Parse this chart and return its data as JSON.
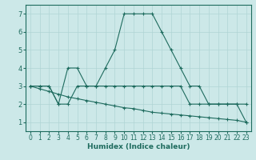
{
  "xlabel": "Humidex (Indice chaleur)",
  "background_color": "#cce8e8",
  "grid_color": "#b0d4d4",
  "line_color": "#1e6b5e",
  "xlim": [
    -0.5,
    23.5
  ],
  "ylim": [
    0.5,
    7.5
  ],
  "xticks": [
    0,
    1,
    2,
    3,
    4,
    5,
    6,
    7,
    8,
    9,
    10,
    11,
    12,
    13,
    14,
    15,
    16,
    17,
    18,
    19,
    20,
    21,
    22,
    23
  ],
  "yticks": [
    1,
    2,
    3,
    4,
    5,
    6,
    7
  ],
  "line1_x": [
    0,
    1,
    2,
    3,
    4,
    5,
    6,
    7,
    8,
    9,
    10,
    11,
    12,
    13,
    14,
    15,
    16,
    17,
    18,
    19,
    20,
    21,
    22,
    23
  ],
  "line1_y": [
    3,
    3,
    3,
    2,
    2,
    3,
    3,
    3,
    3,
    3,
    3,
    3,
    3,
    3,
    3,
    3,
    3,
    2,
    2,
    2,
    2,
    2,
    2,
    2
  ],
  "line2_x": [
    0,
    1,
    2,
    3,
    4,
    5,
    6,
    7,
    8,
    9,
    10,
    11,
    12,
    13,
    14,
    15,
    16,
    17,
    18,
    19,
    20,
    21,
    22,
    23
  ],
  "line2_y": [
    3,
    3,
    3,
    2,
    4,
    4,
    3,
    3,
    4,
    5,
    7,
    7,
    7,
    7,
    6,
    5,
    4,
    3,
    3,
    2,
    2,
    2,
    2,
    1
  ],
  "line3_x": [
    0,
    1,
    2,
    3,
    4,
    5,
    6,
    7,
    8,
    9,
    10,
    11,
    12,
    13,
    14,
    15,
    16,
    17,
    18,
    19,
    20,
    21,
    22,
    23
  ],
  "line3_y": [
    3.0,
    2.85,
    2.7,
    2.55,
    2.4,
    2.3,
    2.2,
    2.1,
    2.0,
    1.9,
    1.8,
    1.75,
    1.65,
    1.55,
    1.5,
    1.45,
    1.4,
    1.35,
    1.3,
    1.25,
    1.2,
    1.15,
    1.1,
    1.0
  ]
}
